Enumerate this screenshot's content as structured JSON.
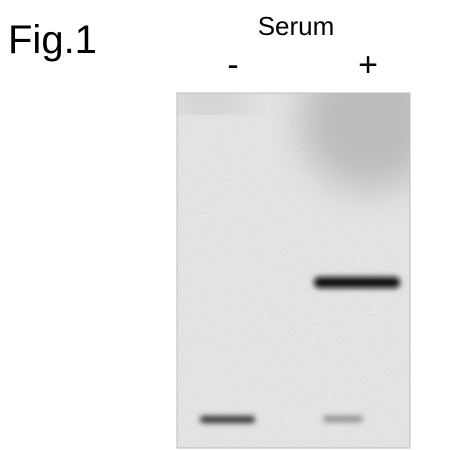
{
  "figure": {
    "label": "Fig.1",
    "condition": "Serum",
    "lanes": [
      "-",
      "+"
    ]
  }
}
